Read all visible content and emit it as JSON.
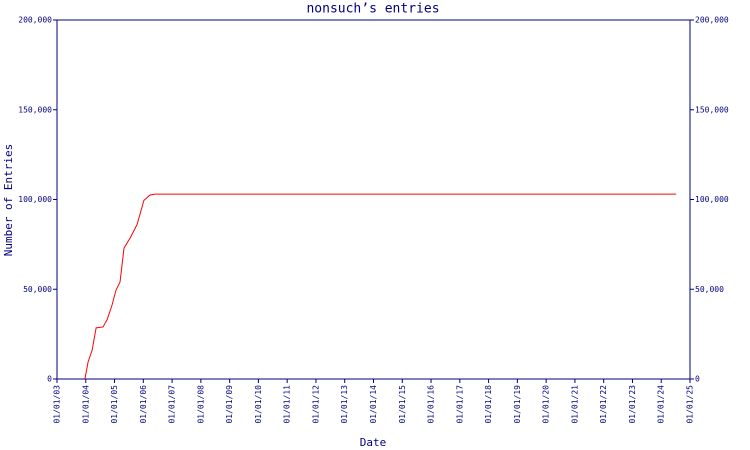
{
  "chart_data": {
    "type": "line",
    "title": "nonsuch’s entries",
    "xlabel": "Date",
    "ylabel": "Number of Entries",
    "x": [
      2003.97,
      2004.08,
      2004.22,
      2004.36,
      2004.6,
      2004.74,
      2004.91,
      2005.05,
      2005.19,
      2005.33,
      2005.54,
      2005.78,
      2005.88,
      2006.02,
      2006.23,
      2006.41,
      2024.52
    ],
    "values": [
      0,
      9500,
      16000,
      28500,
      29000,
      33000,
      41000,
      49500,
      54000,
      73000,
      78500,
      86000,
      91500,
      99500,
      102500,
      103000,
      103000
    ],
    "color": "#ff0000",
    "xlim": [
      2003,
      2025
    ],
    "xticks": [
      {
        "value": 2003,
        "label": "01/01/03"
      },
      {
        "value": 2004,
        "label": "01/01/04"
      },
      {
        "value": 2005,
        "label": "01/01/05"
      },
      {
        "value": 2006,
        "label": "01/01/06"
      },
      {
        "value": 2007,
        "label": "01/01/07"
      },
      {
        "value": 2008,
        "label": "01/01/08"
      },
      {
        "value": 2009,
        "label": "01/01/09"
      },
      {
        "value": 2010,
        "label": "01/01/10"
      },
      {
        "value": 2011,
        "label": "01/01/11"
      },
      {
        "value": 2012,
        "label": "01/01/12"
      },
      {
        "value": 2013,
        "label": "01/01/13"
      },
      {
        "value": 2014,
        "label": "01/01/14"
      },
      {
        "value": 2015,
        "label": "01/01/15"
      },
      {
        "value": 2016,
        "label": "01/01/16"
      },
      {
        "value": 2017,
        "label": "01/01/17"
      },
      {
        "value": 2018,
        "label": "01/01/18"
      },
      {
        "value": 2019,
        "label": "01/01/19"
      },
      {
        "value": 2020,
        "label": "01/01/20"
      },
      {
        "value": 2021,
        "label": "01/01/21"
      },
      {
        "value": 2022,
        "label": "01/01/22"
      },
      {
        "value": 2023,
        "label": "01/01/23"
      },
      {
        "value": 2024,
        "label": "01/01/24"
      },
      {
        "value": 2025,
        "label": "01/01/25"
      }
    ],
    "ylim": [
      0,
      200000
    ],
    "yticks": [
      0,
      {
        "value": 50000,
        "label": "50,000"
      },
      {
        "value": 100000,
        "label": "100,000"
      },
      {
        "value": 150000,
        "label": "150,000"
      },
      {
        "value": 200000,
        "label": "200,000"
      }
    ]
  }
}
